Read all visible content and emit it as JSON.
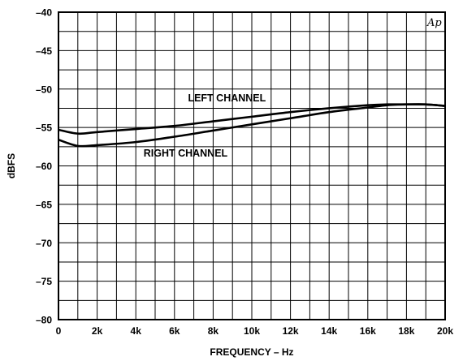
{
  "chart_data": {
    "type": "line",
    "xlabel": "FREQUENCY – Hz",
    "ylabel": "dBFS",
    "xlim": [
      0,
      20000
    ],
    "ylim": [
      -80,
      -40
    ],
    "grid": true,
    "x_ticks": [
      {
        "value": 0,
        "label": "0"
      },
      {
        "value": 2000,
        "label": "2k"
      },
      {
        "value": 4000,
        "label": "4k"
      },
      {
        "value": 6000,
        "label": "6k"
      },
      {
        "value": 8000,
        "label": "8k"
      },
      {
        "value": 10000,
        "label": "10k"
      },
      {
        "value": 12000,
        "label": "12k"
      },
      {
        "value": 14000,
        "label": "14k"
      },
      {
        "value": 16000,
        "label": "16k"
      },
      {
        "value": 18000,
        "label": "18k"
      },
      {
        "value": 20000,
        "label": "20k"
      }
    ],
    "y_ticks": [
      {
        "value": -40,
        "label": "–40"
      },
      {
        "value": -45,
        "label": "–45"
      },
      {
        "value": -50,
        "label": "–50"
      },
      {
        "value": -55,
        "label": "–55"
      },
      {
        "value": -60,
        "label": "–60"
      },
      {
        "value": -65,
        "label": "–65"
      },
      {
        "value": -70,
        "label": "–70"
      },
      {
        "value": -75,
        "label": "–75"
      },
      {
        "value": -80,
        "label": "–80"
      }
    ],
    "series": [
      {
        "name": "LEFT CHANNEL",
        "x": [
          0,
          1000,
          2000,
          4000,
          6000,
          8000,
          10000,
          12000,
          14000,
          16000,
          17000,
          18000,
          19000,
          20000
        ],
        "y": [
          -55.3,
          -55.8,
          -55.6,
          -55.2,
          -54.8,
          -54.2,
          -53.6,
          -53.0,
          -52.5,
          -52.1,
          -52.0,
          -52.0,
          -52.0,
          -52.2
        ]
      },
      {
        "name": "RIGHT CHANNEL",
        "x": [
          0,
          1000,
          2000,
          4000,
          6000,
          8000,
          10000,
          12000,
          14000,
          16000,
          17000,
          18000,
          19000,
          20000
        ],
        "y": [
          -56.6,
          -57.4,
          -57.3,
          -56.9,
          -56.2,
          -55.4,
          -54.6,
          -53.8,
          -53.0,
          -52.4,
          -52.1,
          -52.0,
          -52.0,
          -52.2
        ]
      }
    ],
    "annotations": [
      {
        "text": "LEFT CHANNEL",
        "x": 6700,
        "y": -51.6
      },
      {
        "text": "RIGHT CHANNEL",
        "x": 4400,
        "y": -58.8
      }
    ],
    "watermark": "Ap"
  }
}
